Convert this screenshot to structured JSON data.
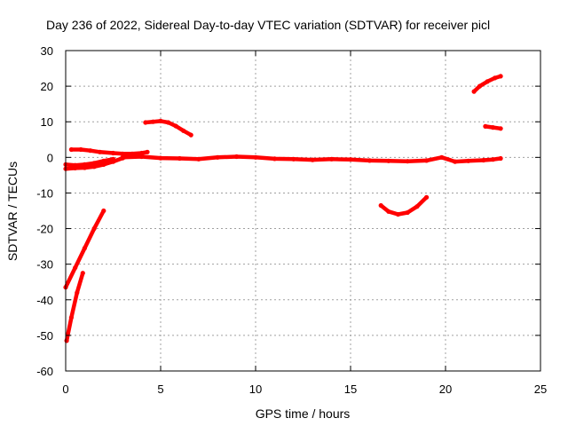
{
  "chart_data": {
    "type": "line",
    "title": "Day 236 of 2022, Sidereal Day-to-day VTEC variation (SDTVAR) for receiver picl",
    "xlabel": "GPS time / hours",
    "ylabel": "SDTVAR / TECUs",
    "xlim": [
      0,
      25
    ],
    "ylim": [
      -60,
      30
    ],
    "xticks": [
      "0",
      "5",
      "10",
      "15",
      "20",
      "25"
    ],
    "yticks": [
      "30",
      "20",
      "10",
      "0",
      "-10",
      "-20",
      "-30",
      "-40",
      "-50",
      "-60"
    ],
    "xtick_values": [
      0,
      5,
      10,
      15,
      20,
      25
    ],
    "ytick_values": [
      30,
      20,
      10,
      0,
      -10,
      -20,
      -30,
      -40,
      -50,
      -60
    ],
    "grid": true,
    "color": "#ff0000",
    "series": [
      {
        "x": [
          0.0,
          0.5,
          1.0,
          1.5,
          2.0
        ],
        "y": [
          -36.5,
          -31,
          -25.5,
          -20,
          -15
        ]
      },
      {
        "x": [
          0.05,
          0.3,
          0.6,
          0.9
        ],
        "y": [
          -51.5,
          -45,
          -38,
          -32.5
        ]
      },
      {
        "x": [
          0.3,
          0.8,
          1.3,
          1.8,
          2.5,
          3.0,
          3.5,
          4.0,
          4.3
        ],
        "y": [
          2.2,
          2.2,
          1.9,
          1.5,
          1.2,
          1.0,
          1.0,
          1.2,
          1.5
        ]
      },
      {
        "x": [
          0.0,
          0.5,
          1.0,
          1.5,
          2.0,
          2.5,
          3.0,
          3.5
        ],
        "y": [
          -3.2,
          -3.0,
          -2.9,
          -2.6,
          -2.0,
          -1.2,
          -0.2,
          0.8
        ]
      },
      {
        "x": [
          0.0,
          0.5,
          1.0,
          1.5,
          2.0,
          2.5
        ],
        "y": [
          -2.0,
          -2.2,
          -2.0,
          -1.6,
          -1.0,
          -0.5
        ]
      },
      {
        "x": [
          3.0,
          4.0,
          5.0,
          6.0,
          7.0,
          8.0,
          9.0,
          10.0,
          11.0,
          12.0,
          13.0,
          14.0,
          15.0,
          16.0,
          17.0,
          18.0,
          19.0,
          19.8,
          20.5,
          21.2,
          22.0,
          22.5,
          22.9
        ],
        "y": [
          0.0,
          0.2,
          -0.2,
          -0.3,
          -0.5,
          0.0,
          0.2,
          0.0,
          -0.4,
          -0.5,
          -0.7,
          -0.5,
          -0.6,
          -0.9,
          -1.0,
          -1.1,
          -0.9,
          0.0,
          -1.2,
          -1.0,
          -0.8,
          -0.6,
          -0.3
        ]
      },
      {
        "x": [
          4.2,
          4.6,
          5.0,
          5.4,
          5.8,
          6.2,
          6.6
        ],
        "y": [
          9.8,
          10.0,
          10.2,
          9.8,
          8.8,
          7.5,
          6.3
        ]
      },
      {
        "x": [
          16.6,
          17.0,
          17.5,
          18.0,
          18.5,
          19.0
        ],
        "y": [
          -13.5,
          -15.2,
          -16.0,
          -15.5,
          -13.8,
          -11.2
        ]
      },
      {
        "x": [
          21.5,
          21.8,
          22.2,
          22.6,
          22.9
        ],
        "y": [
          18.5,
          20.0,
          21.3,
          22.3,
          22.8
        ]
      },
      {
        "x": [
          22.1,
          22.5,
          22.9
        ],
        "y": [
          8.7,
          8.4,
          8.1
        ]
      }
    ]
  }
}
